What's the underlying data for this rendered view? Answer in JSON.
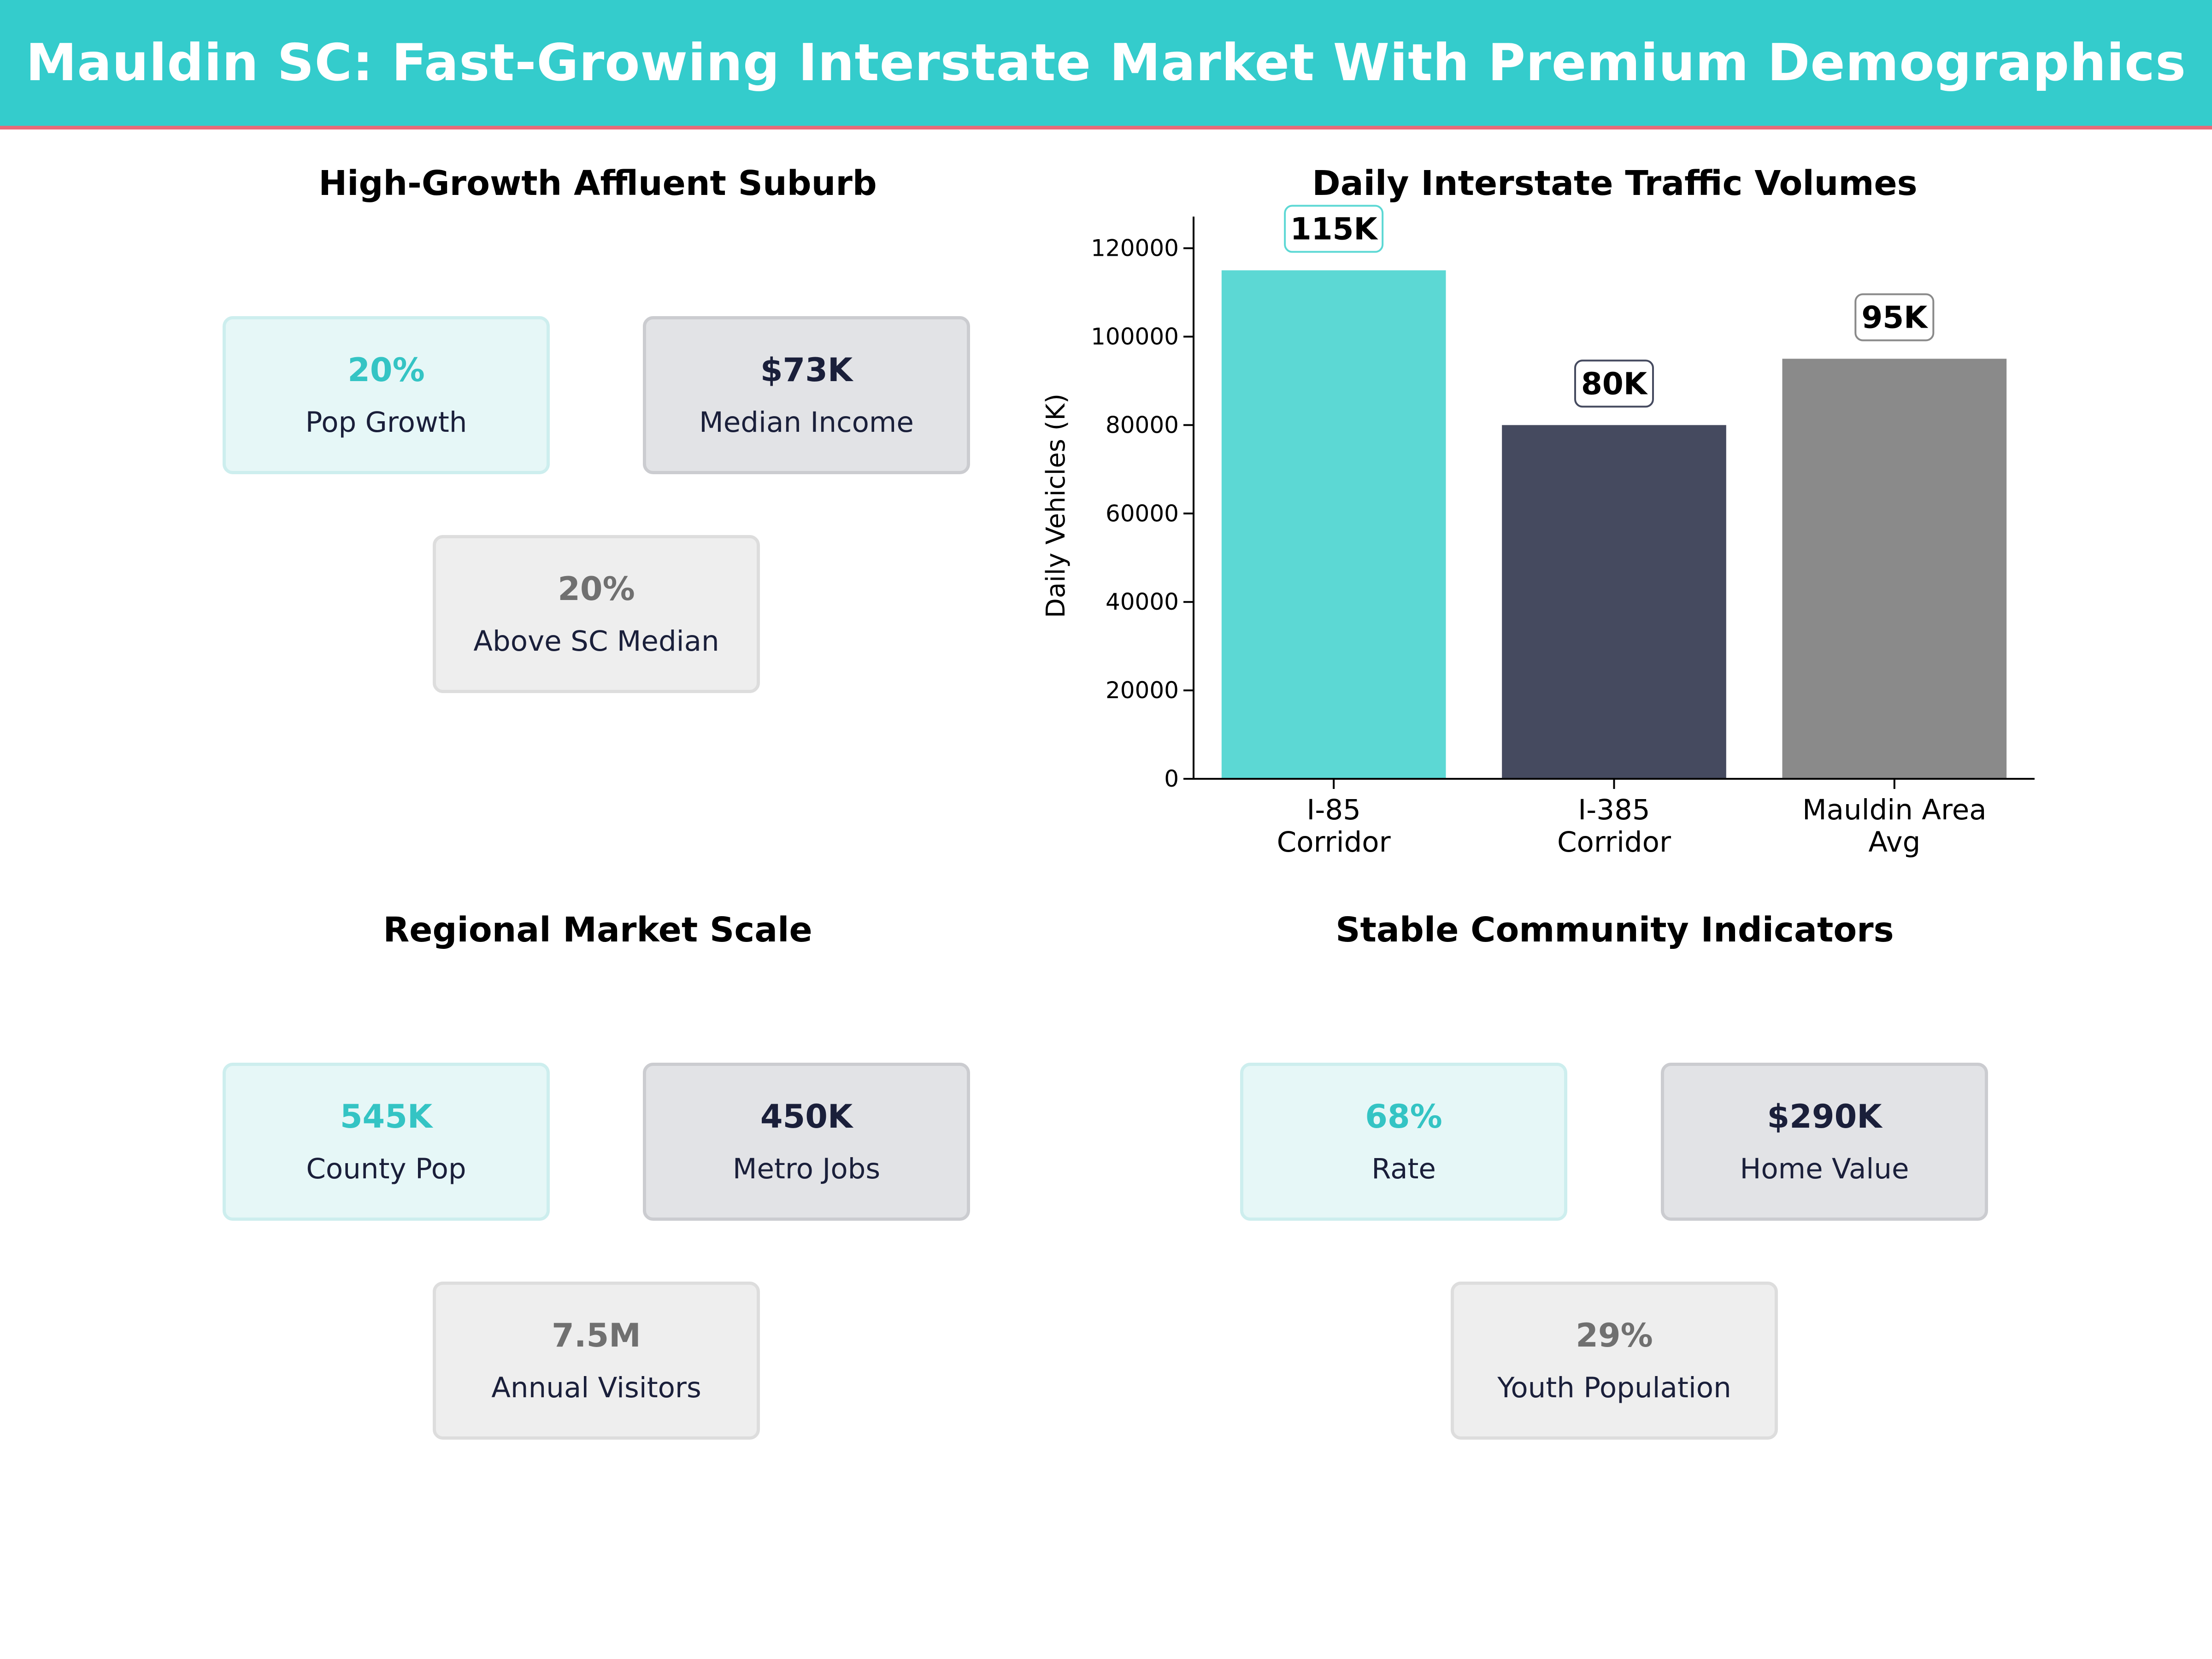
{
  "header": {
    "title": "Mauldin SC: Fast-Growing Interstate Market With Premium Demographics"
  },
  "panels": {
    "growth": {
      "title": "High-Growth Affluent Suburb",
      "cards": [
        {
          "value": "20%",
          "label": "Pop Growth"
        },
        {
          "value": "$73K",
          "label": "Median Income"
        },
        {
          "value": "20%",
          "label": "Above SC Median"
        }
      ]
    },
    "traffic": {
      "title": "Daily Interstate Traffic Volumes"
    },
    "market": {
      "title": "Regional Market Scale",
      "cards": [
        {
          "value": "545K",
          "label": "County Pop"
        },
        {
          "value": "450K",
          "label": "Metro Jobs"
        },
        {
          "value": "7.5M",
          "label": "Annual Visitors"
        }
      ]
    },
    "community": {
      "title": "Stable Community Indicators",
      "cards": [
        {
          "value": "68%",
          "label": "Rate"
        },
        {
          "value": "$290K",
          "label": "Home Value"
        },
        {
          "value": "29%",
          "label": "Youth Population"
        }
      ]
    }
  },
  "colors": {
    "teal": "#5cd8d4",
    "navy": "#454a5f",
    "gray": "#8a8a8a",
    "banner": "#34cccc",
    "banner_rule": "#e86a78"
  },
  "chart_data": {
    "type": "bar",
    "title": "Daily Interstate Traffic Volumes",
    "categories": [
      [
        "I-85",
        "Corridor"
      ],
      [
        "I-385",
        "Corridor"
      ],
      [
        "Mauldin Area",
        "Avg"
      ]
    ],
    "values": [
      115000,
      80000,
      95000
    ],
    "data_labels": [
      "115K",
      "80K",
      "95K"
    ],
    "ylabel": "Daily Vehicles (K)",
    "ylim": [
      0,
      123500
    ],
    "yticks": [
      0,
      20000,
      40000,
      60000,
      80000,
      100000,
      120000
    ],
    "grid": false,
    "bar_colors": [
      "#5cd8d4",
      "#454a5f",
      "#8a8a8a"
    ],
    "label_border_colors": [
      "#5cd8d4",
      "#454a5f",
      "#8a8a8a"
    ]
  }
}
